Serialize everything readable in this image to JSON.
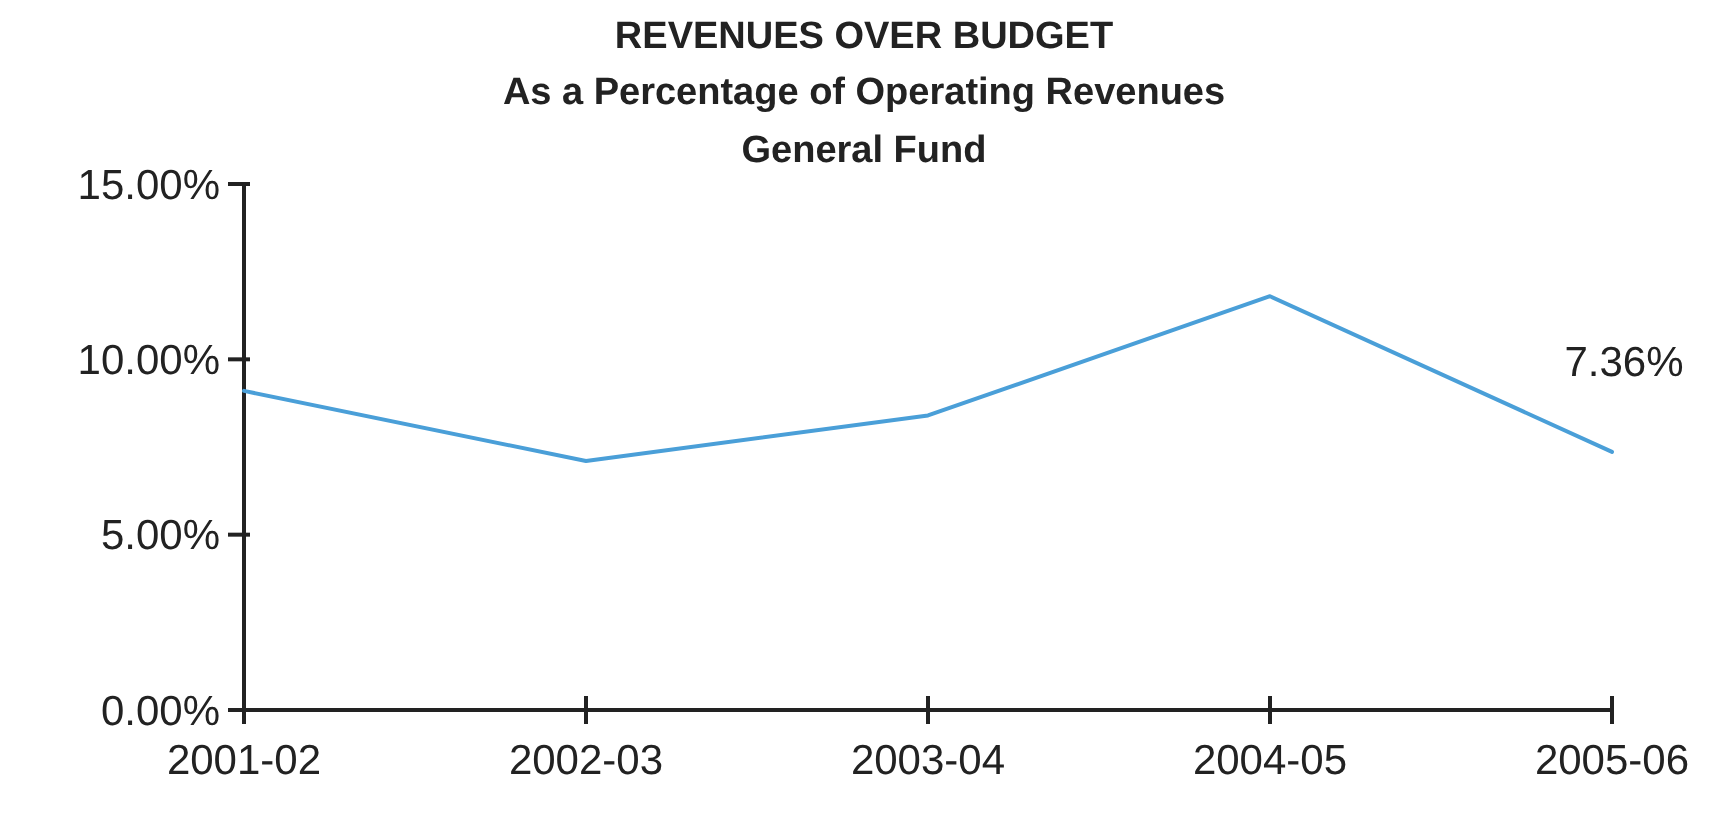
{
  "chart_data": {
    "type": "line",
    "title": "REVENUES OVER BUDGET",
    "subtitle": "As a Percentage of Operating Revenues\nGeneral Fund",
    "categories": [
      "2001-02",
      "2002-03",
      "2003-04",
      "2004-05",
      "2005-06"
    ],
    "series": [
      {
        "color": "#4a9fd8",
        "values": [
          9.1,
          7.1,
          8.4,
          11.8,
          7.36
        ],
        "value_labels": [
          null,
          null,
          null,
          null,
          "7.36%"
        ]
      }
    ],
    "ylim": [
      0,
      15
    ],
    "yticks": [
      {
        "value": 0,
        "label": "0.00%"
      },
      {
        "value": 5,
        "label": "5.00%"
      },
      {
        "value": 10,
        "label": "10.00%"
      },
      {
        "value": 15,
        "label": "15.00%"
      }
    ],
    "grid": false,
    "marker": "none",
    "line_style": "solid"
  }
}
